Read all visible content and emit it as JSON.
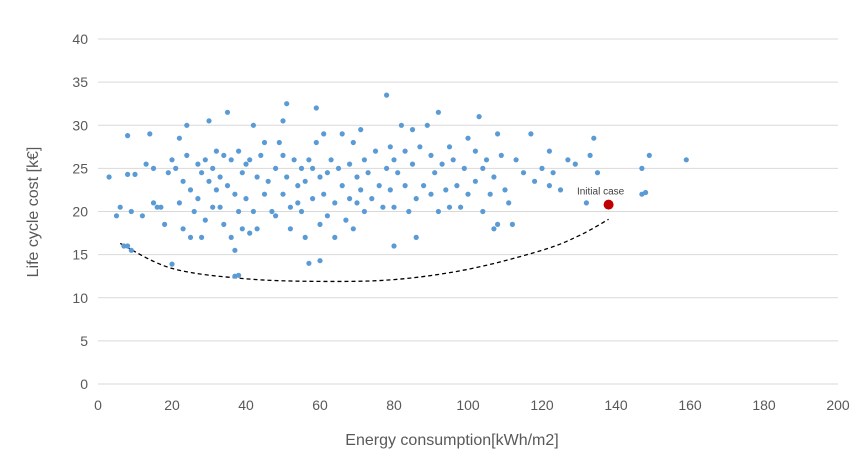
{
  "chart_data": {
    "type": "scatter",
    "title": "",
    "xlabel": "Energy consumption[kWh/m2]",
    "ylabel": "Life cycle cost [k€]",
    "xlim": [
      0,
      200
    ],
    "ylim": [
      0,
      40
    ],
    "xticks": [
      "0",
      "20",
      "40",
      "60",
      "80",
      "100",
      "120",
      "140",
      "160",
      "180",
      "200"
    ],
    "yticks": [
      "0",
      "5",
      "10",
      "15",
      "20",
      "25",
      "30",
      "35",
      "40"
    ],
    "grid": "horizontal",
    "legend": "none",
    "colors": {
      "points": "#5b9bd5",
      "highlight": "#c00000",
      "frontier": "#000000"
    },
    "series": [
      {
        "points": [
          [
            3,
            24
          ],
          [
            5,
            19.5
          ],
          [
            6,
            20.5
          ],
          [
            7,
            16
          ],
          [
            8,
            16
          ],
          [
            8,
            28.8
          ],
          [
            8,
            24.3
          ],
          [
            9,
            20
          ],
          [
            9,
            15.5
          ],
          [
            10,
            24.3
          ],
          [
            12,
            19.5
          ],
          [
            13,
            25.5
          ],
          [
            14,
            29
          ],
          [
            15,
            21
          ],
          [
            15,
            25
          ],
          [
            16,
            20.5
          ],
          [
            17,
            20.5
          ],
          [
            18,
            18.5
          ],
          [
            19,
            24.5
          ],
          [
            20,
            26
          ],
          [
            20,
            13.9
          ],
          [
            21,
            25
          ],
          [
            22,
            28.5
          ],
          [
            22,
            21
          ],
          [
            23,
            18
          ],
          [
            23,
            23.5
          ],
          [
            24,
            30
          ],
          [
            24,
            26.5
          ],
          [
            25,
            22.5
          ],
          [
            25,
            17
          ],
          [
            26,
            20
          ],
          [
            27,
            25.5
          ],
          [
            27,
            21.5
          ],
          [
            28,
            24.5
          ],
          [
            28,
            17
          ],
          [
            29,
            19
          ],
          [
            29,
            26
          ],
          [
            30,
            30.5
          ],
          [
            30,
            23.5
          ],
          [
            31,
            20.5
          ],
          [
            31,
            25
          ],
          [
            32,
            27
          ],
          [
            32,
            22.5
          ],
          [
            33,
            20.5
          ],
          [
            33,
            24
          ],
          [
            34,
            26.5
          ],
          [
            34,
            18.5
          ],
          [
            35,
            23
          ],
          [
            35,
            31.5
          ],
          [
            36,
            26
          ],
          [
            36,
            17
          ],
          [
            37,
            22
          ],
          [
            37,
            15.5
          ],
          [
            37,
            12.5
          ],
          [
            38,
            20
          ],
          [
            38,
            27
          ],
          [
            38,
            12.6
          ],
          [
            39,
            24.5
          ],
          [
            39,
            18
          ],
          [
            40,
            25.5
          ],
          [
            40,
            21.5
          ],
          [
            41,
            26
          ],
          [
            41,
            17.5
          ],
          [
            42,
            30
          ],
          [
            42,
            20
          ],
          [
            43,
            24
          ],
          [
            43,
            18
          ],
          [
            44,
            26.5
          ],
          [
            45,
            22
          ],
          [
            45,
            28
          ],
          [
            46,
            23.5
          ],
          [
            47,
            20
          ],
          [
            48,
            25
          ],
          [
            48,
            19.5
          ],
          [
            49,
            28
          ],
          [
            50,
            30.5
          ],
          [
            50,
            26.5
          ],
          [
            50,
            22
          ],
          [
            51,
            32.5
          ],
          [
            51,
            24
          ],
          [
            52,
            20.5
          ],
          [
            52,
            18
          ],
          [
            53,
            26
          ],
          [
            54,
            23
          ],
          [
            54,
            21
          ],
          [
            55,
            25
          ],
          [
            55,
            20
          ],
          [
            56,
            23.5
          ],
          [
            56,
            17
          ],
          [
            57,
            26
          ],
          [
            57,
            14
          ],
          [
            58,
            21.5
          ],
          [
            58,
            25
          ],
          [
            59,
            32
          ],
          [
            59,
            28
          ],
          [
            60,
            24
          ],
          [
            60,
            18.5
          ],
          [
            60,
            14.3
          ],
          [
            61,
            29
          ],
          [
            61,
            22
          ],
          [
            62,
            24.5
          ],
          [
            62,
            19.5
          ],
          [
            63,
            26
          ],
          [
            64,
            21
          ],
          [
            64,
            17
          ],
          [
            65,
            25
          ],
          [
            66,
            29
          ],
          [
            66,
            23
          ],
          [
            67,
            19
          ],
          [
            68,
            25.5
          ],
          [
            68,
            21.5
          ],
          [
            69,
            28
          ],
          [
            69,
            18
          ],
          [
            70,
            24
          ],
          [
            70,
            21
          ],
          [
            71,
            29.5
          ],
          [
            71,
            22.5
          ],
          [
            72,
            20
          ],
          [
            72,
            26
          ],
          [
            73,
            24.5
          ],
          [
            74,
            21.5
          ],
          [
            75,
            27
          ],
          [
            76,
            23
          ],
          [
            77,
            20.5
          ],
          [
            78,
            25
          ],
          [
            78,
            33.5
          ],
          [
            79,
            27.5
          ],
          [
            79,
            22.5
          ],
          [
            80,
            26
          ],
          [
            80,
            16
          ],
          [
            80,
            20.5
          ],
          [
            81,
            24.5
          ],
          [
            82,
            30
          ],
          [
            83,
            27
          ],
          [
            83,
            23
          ],
          [
            84,
            20
          ],
          [
            85,
            29.5
          ],
          [
            85,
            25.5
          ],
          [
            86,
            21.5
          ],
          [
            86,
            17
          ],
          [
            87,
            27.5
          ],
          [
            88,
            23
          ],
          [
            89,
            30
          ],
          [
            90,
            26.5
          ],
          [
            90,
            22
          ],
          [
            91,
            24.5
          ],
          [
            92,
            31.5
          ],
          [
            92,
            20
          ],
          [
            93,
            25.5
          ],
          [
            94,
            22.5
          ],
          [
            95,
            27.5
          ],
          [
            95,
            20.5
          ],
          [
            96,
            26
          ],
          [
            97,
            23
          ],
          [
            98,
            20.5
          ],
          [
            99,
            25
          ],
          [
            100,
            28.5
          ],
          [
            100,
            22
          ],
          [
            102,
            27
          ],
          [
            102,
            23.5
          ],
          [
            103,
            31
          ],
          [
            104,
            25
          ],
          [
            104,
            20
          ],
          [
            105,
            26
          ],
          [
            106,
            22
          ],
          [
            107,
            18
          ],
          [
            107,
            24
          ],
          [
            108,
            29
          ],
          [
            108,
            18.5
          ],
          [
            109,
            26.5
          ],
          [
            110,
            22.5
          ],
          [
            111,
            21
          ],
          [
            112,
            18.5
          ],
          [
            113,
            26
          ],
          [
            115,
            24.5
          ],
          [
            117,
            29
          ],
          [
            118,
            23.5
          ],
          [
            120,
            25
          ],
          [
            122,
            27
          ],
          [
            122,
            23
          ],
          [
            123,
            24.5
          ],
          [
            125,
            22.5
          ],
          [
            127,
            26
          ],
          [
            129,
            25.5
          ],
          [
            132,
            21
          ],
          [
            133,
            26.5
          ],
          [
            134,
            28.5
          ],
          [
            135,
            24.5
          ],
          [
            147,
            25
          ],
          [
            147,
            22
          ],
          [
            148,
            22.2
          ],
          [
            149,
            26.5
          ],
          [
            159,
            26
          ]
        ]
      }
    ],
    "highlight": {
      "label": "Initial case",
      "x": 138,
      "y": 20.8
    },
    "frontier": [
      [
        6,
        16.3
      ],
      [
        20,
        13.4
      ],
      [
        40,
        12.2
      ],
      [
        60,
        11.9
      ],
      [
        80,
        12.1
      ],
      [
        100,
        13.3
      ],
      [
        120,
        15.5
      ],
      [
        130,
        17.2
      ],
      [
        138,
        19.1
      ]
    ]
  }
}
